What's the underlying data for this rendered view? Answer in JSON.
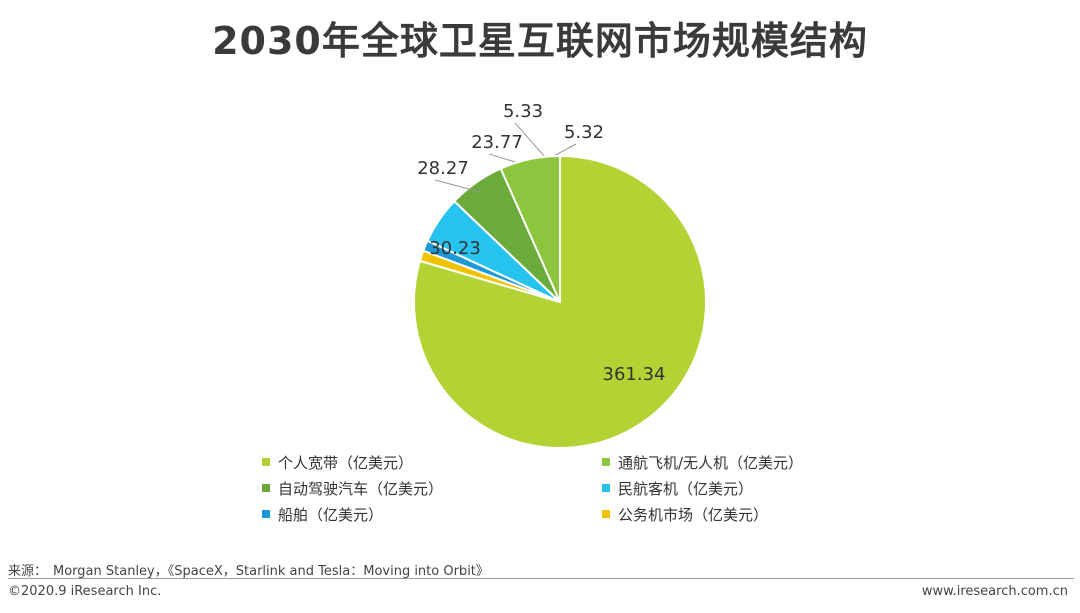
{
  "title": "2030年全球卫星互联网市场规模结构",
  "chart_data": {
    "type": "pie",
    "title": "2030年全球卫星互联网市场规模结构",
    "unit": "亿美元",
    "slices": [
      {
        "name": "个人宽带（亿美元）",
        "value": 361.34,
        "label": "361.34",
        "color": "#b3d233"
      },
      {
        "name": "公务机市场（亿美元）",
        "value": 5.32,
        "label": "5.32",
        "color": "#f2c200"
      },
      {
        "name": "船舶（亿美元）",
        "value": 5.33,
        "label": "5.33",
        "color": "#1a9bd7"
      },
      {
        "name": "民航客机（亿美元）",
        "value": 23.77,
        "label": "23.77",
        "color": "#27c3ef"
      },
      {
        "name": "自动驾驶汽车（亿美元）",
        "value": 28.27,
        "label": "28.27",
        "color": "#6aab3c"
      },
      {
        "name": "通航飞机/无人机（亿美元）",
        "value": 30.23,
        "label": "30.23",
        "color": "#8cc63f"
      }
    ],
    "legend_order": [
      "个人宽带（亿美元）",
      "通航飞机/无人机（亿美元）",
      "自动驾驶汽车（亿美元）",
      "民航客机（亿美元）",
      "船舶（亿美元）",
      "公务机市场（亿美元）"
    ],
    "legend_position": "bottom"
  },
  "source": {
    "label": "来源：",
    "text": "Morgan Stanley，《SpaceX，Starlink and Tesla：Moving into Orbit》"
  },
  "footer": {
    "copyright": "©2020.9 iResearch Inc.",
    "website": "www.iresearch.com.cn"
  }
}
